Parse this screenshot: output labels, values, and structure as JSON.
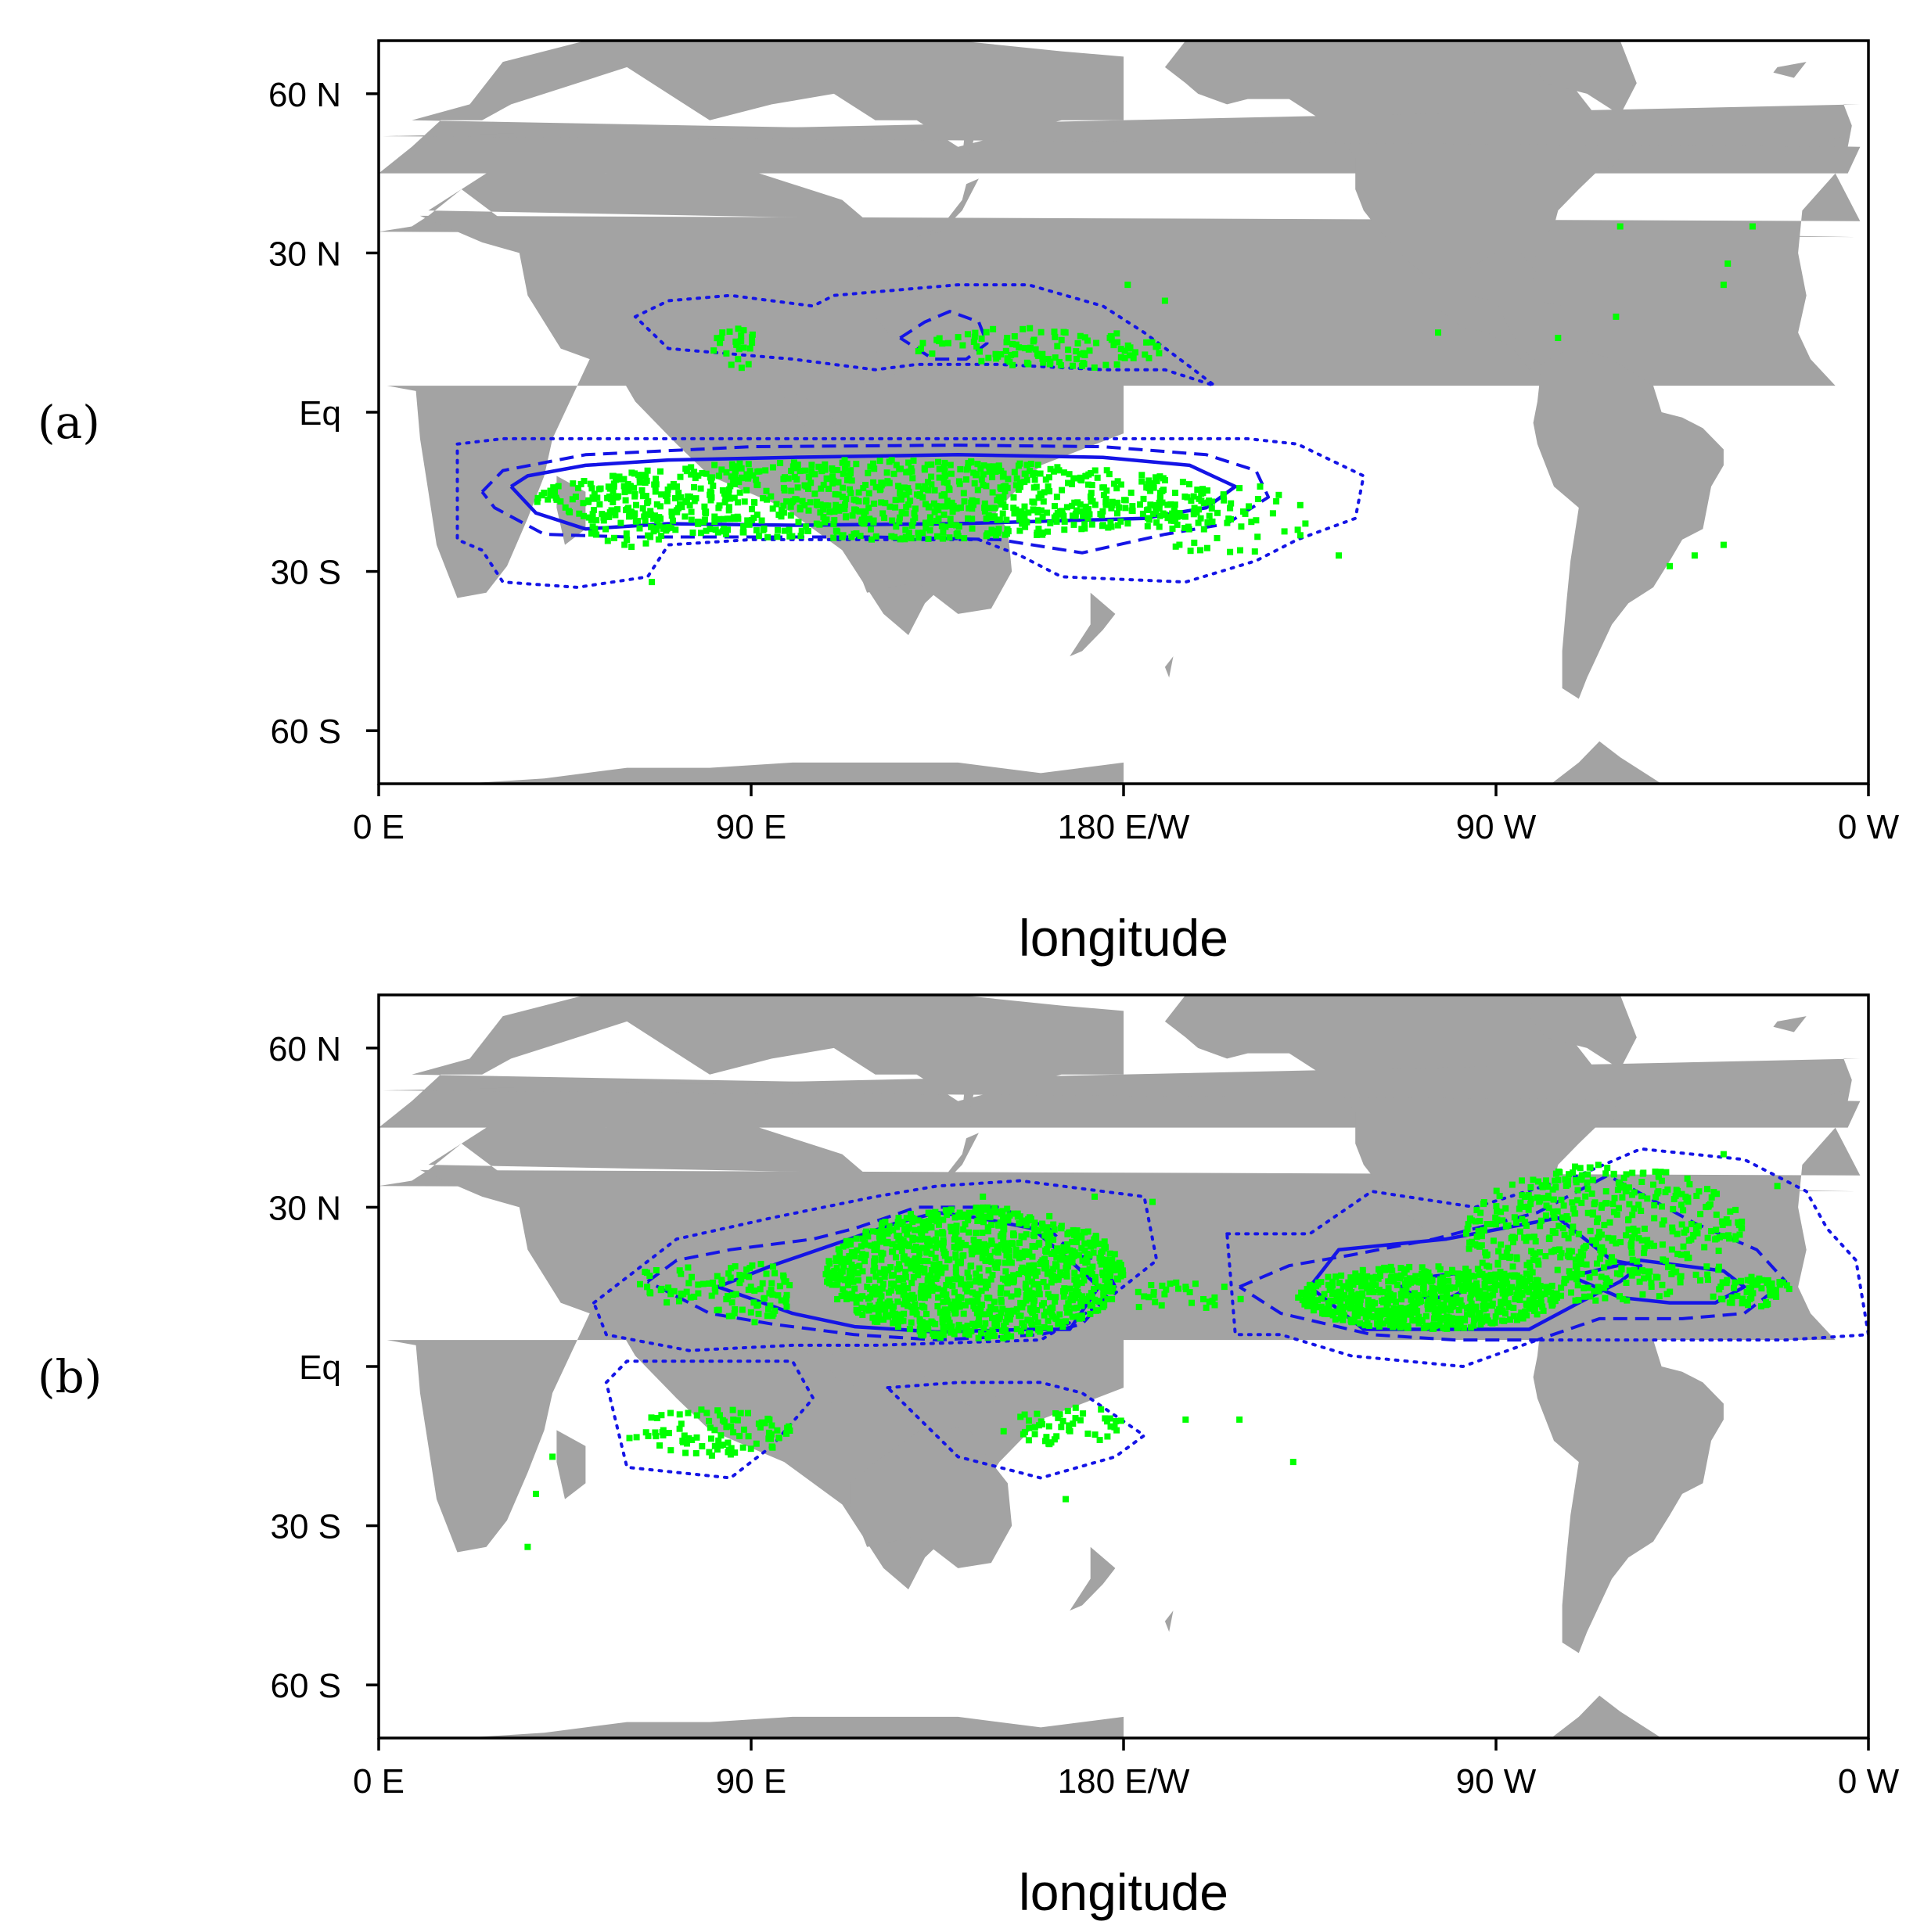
{
  "xlabel": "longitude",
  "panel_labels": [
    "(a)",
    "(b)"
  ],
  "x_tick_labels": [
    "0 E",
    "90 E",
    "180 E/W",
    "90 W",
    "0 W"
  ],
  "y_tick_labels": [
    "60 N",
    "30 N",
    "Eq",
    "30 S",
    "60 S"
  ],
  "colors": {
    "land": "#a3a3a3",
    "points": "#00ff00",
    "contours": "#1414e6"
  },
  "chart_data": [
    {
      "type": "scatter",
      "panel": "(a)",
      "xlabel": "longitude",
      "ylabel": "",
      "xlim": [
        0,
        360
      ],
      "ylim": [
        -70,
        70
      ],
      "x_ticks": [
        0,
        90,
        180,
        270,
        360
      ],
      "y_ticks": [
        60,
        30,
        0,
        -30,
        -60
      ],
      "grid": false,
      "background": "world map, land shaded grey",
      "point_clusters": [
        {
          "lon": [
            38,
            205
          ],
          "lat": [
            -24,
            -9
          ],
          "n": 900
        },
        {
          "lon": [
            50,
            70
          ],
          "lat": [
            -26,
            -18
          ],
          "n": 40
        },
        {
          "lon": [
            130,
            190
          ],
          "lat": [
            8,
            16
          ],
          "n": 110
        },
        {
          "lon": [
            80,
            92
          ],
          "lat": [
            8,
            16
          ],
          "n": 25
        },
        {
          "lon": [
            185,
            225
          ],
          "lat": [
            -27,
            -14
          ],
          "n": 60
        }
      ],
      "scattered_points": [
        [
          181,
          24
        ],
        [
          190,
          21
        ],
        [
          256,
          15
        ],
        [
          285,
          14
        ],
        [
          299,
          18
        ],
        [
          300,
          35
        ],
        [
          325,
          24
        ],
        [
          326,
          28
        ],
        [
          332,
          35
        ],
        [
          312,
          -29
        ],
        [
          318,
          -27
        ],
        [
          325,
          -25
        ],
        [
          66,
          -32
        ],
        [
          232,
          -27
        ],
        [
          213,
          -14
        ]
      ],
      "contours": [
        {
          "style": "solid",
          "lon": [
            32,
            36,
            50,
            70,
            100,
            140,
            175,
            196,
            207,
            200,
            185,
            140,
            100,
            70,
            50,
            38,
            32
          ],
          "lat": [
            -14,
            -12,
            -10,
            -9,
            -8.5,
            -8,
            -8.5,
            -10,
            -14,
            -18,
            -20,
            -21,
            -21.3,
            -21,
            -22,
            -19,
            -14
          ]
        },
        {
          "style": "dashed",
          "lon": [
            25,
            30,
            50,
            90,
            140,
            175,
            200,
            212,
            215,
            205,
            190,
            170,
            150,
            120,
            90,
            60,
            40,
            28,
            25
          ],
          "lat": [
            -15,
            -11,
            -8,
            -6.5,
            -6.2,
            -6.5,
            -8,
            -11,
            -16,
            -21,
            -23,
            -26.5,
            -24,
            -23.5,
            -23.5,
            -23.5,
            -23,
            -18,
            -15
          ]
        },
        {
          "style": "dashed",
          "lon": [
            126,
            132,
            138,
            145,
            147,
            142,
            134,
            126
          ],
          "lat": [
            14,
            17,
            19,
            17,
            13,
            10,
            10,
            14
          ]
        },
        {
          "style": "dotted",
          "lon": [
            19,
            30,
            55,
            90,
            140,
            180,
            210,
            222,
            238,
            236,
            222,
            212,
            195,
            165,
            155,
            145,
            120,
            90,
            70,
            65,
            48,
            30,
            25,
            19,
            19
          ],
          "lat": [
            -6,
            -5,
            -5,
            -5,
            -5,
            -5,
            -5,
            -6,
            -12,
            -20,
            -24,
            -28,
            -32,
            -31,
            -27,
            -24,
            -24,
            -24,
            -25,
            -31,
            -33,
            -32,
            -26,
            -24,
            -6
          ]
        },
        {
          "style": "dotted",
          "lon": [
            62,
            70,
            85,
            105,
            110,
            125,
            140,
            157,
            175,
            185,
            197,
            202,
            190,
            175,
            150,
            130,
            120,
            100,
            85,
            70,
            62
          ],
          "lat": [
            18,
            21,
            22,
            20,
            22,
            23,
            24,
            24,
            20,
            15,
            8,
            5,
            8,
            8,
            9,
            9,
            8,
            10,
            11,
            12,
            18
          ]
        }
      ]
    },
    {
      "type": "scatter",
      "panel": "(b)",
      "xlabel": "longitude",
      "ylabel": "",
      "xlim": [
        0,
        360
      ],
      "ylim": [
        -70,
        70
      ],
      "x_ticks": [
        0,
        90,
        180,
        270,
        360
      ],
      "y_ticks": [
        60,
        30,
        0,
        -30,
        -60
      ],
      "grid": false,
      "background": "world map, land shaded grey",
      "point_clusters": [
        {
          "lon": [
            108,
            180
          ],
          "lat": [
            5,
            30
          ],
          "n": 1100
        },
        {
          "lon": [
            80,
            100
          ],
          "lat": [
            8,
            20
          ],
          "n": 70
        },
        {
          "lon": [
            62,
            80
          ],
          "lat": [
            12,
            19
          ],
          "n": 30
        },
        {
          "lon": [
            180,
            210
          ],
          "lat": [
            10,
            16
          ],
          "n": 25
        },
        {
          "lon": [
            222,
            285
          ],
          "lat": [
            7,
            19
          ],
          "n": 650
        },
        {
          "lon": [
            262,
            330
          ],
          "lat": [
            12,
            38
          ],
          "n": 480
        },
        {
          "lon": [
            322,
            342
          ],
          "lat": [
            11,
            17
          ],
          "n": 60
        },
        {
          "lon": [
            60,
            100
          ],
          "lat": [
            -17,
            -8
          ],
          "n": 90
        },
        {
          "lon": [
            150,
            180
          ],
          "lat": [
            -15,
            -7
          ],
          "n": 50
        }
      ],
      "scattered_points": [
        [
          146,
          32
        ],
        [
          173,
          32
        ],
        [
          187,
          31
        ],
        [
          195,
          15
        ],
        [
          196,
          14
        ],
        [
          202,
          13
        ],
        [
          195,
          -10
        ],
        [
          208,
          -10
        ],
        [
          221,
          -18
        ],
        [
          38,
          -24
        ],
        [
          36,
          -34
        ],
        [
          42,
          -17
        ],
        [
          166,
          -25
        ],
        [
          325,
          40
        ],
        [
          338,
          34
        ]
      ],
      "contours": [
        {
          "style": "solid",
          "lon": [
            82,
            95,
            110,
            125,
            135,
            145,
            158,
            167,
            174,
            167,
            158,
            135,
            115,
            100,
            82
          ],
          "lat": [
            15,
            19,
            23,
            27,
            29,
            28,
            26,
            20,
            15,
            7,
            7,
            6.5,
            7.5,
            10,
            15
          ]
        },
        {
          "style": "dashed",
          "lon": [
            65,
            72,
            85,
            105,
            115,
            130,
            150,
            162,
            168,
            175,
            178,
            170,
            160,
            135,
            115,
            95,
            80,
            65
          ],
          "lat": [
            16,
            20,
            22,
            24,
            26,
            30,
            30,
            26,
            21,
            20,
            15,
            8,
            6,
            5,
            6,
            8,
            10,
            16
          ]
        },
        {
          "style": "solid",
          "lon": [
            225,
            232,
            258,
            285,
            298,
            305,
            300,
            290,
            278,
            255,
            238,
            225
          ],
          "lat": [
            15,
            22,
            24,
            28,
            20,
            19,
            16,
            12,
            7,
            7,
            7,
            15
          ]
        },
        {
          "style": "solid",
          "lon": [
            247,
            255,
            260,
            264,
            259,
            251,
            247
          ],
          "lat": [
            15,
            17,
            17.5,
            15,
            13,
            13,
            15
          ]
        },
        {
          "style": "solid",
          "lon": [
            288,
            305,
            325,
            330,
            323,
            312,
            300,
            288
          ],
          "lat": [
            17,
            20,
            18,
            15,
            12,
            12,
            13,
            17
          ]
        },
        {
          "style": "dashed",
          "lon": [
            208,
            220,
            235,
            255,
            280,
            297,
            318,
            333,
            340,
            330,
            315,
            295,
            280,
            260,
            240,
            218,
            208
          ],
          "lat": [
            15,
            19,
            21,
            24,
            29,
            36,
            27,
            22,
            16,
            10,
            9,
            9,
            5,
            5,
            6,
            10,
            15
          ]
        },
        {
          "style": "dotted",
          "lon": [
            205,
            225,
            240,
            265,
            290,
            305,
            330,
            345,
            350,
            357,
            360,
            340,
            310,
            280,
            262,
            235,
            218,
            207,
            205
          ],
          "lat": [
            25,
            25,
            33,
            30,
            36,
            41,
            39,
            33,
            26,
            20,
            6,
            5,
            5,
            5,
            0,
            2,
            6,
            6,
            25
          ]
        },
        {
          "style": "dotted",
          "lon": [
            52,
            72,
            95,
            120,
            135,
            155,
            185,
            188,
            175,
            160,
            120,
            100,
            75,
            55,
            52
          ],
          "lat": [
            12,
            24,
            28,
            32,
            34,
            35,
            32,
            20,
            12,
            5,
            4,
            4,
            3,
            6,
            12
          ]
        },
        {
          "style": "dotted",
          "lon": [
            55,
            60,
            100,
            105,
            95,
            85,
            60,
            55
          ],
          "lat": [
            -3,
            1,
            1,
            -6,
            -15,
            -21,
            -19,
            -3
          ]
        },
        {
          "style": "dotted",
          "lon": [
            123,
            140,
            160,
            170,
            185,
            178,
            160,
            140,
            123
          ],
          "lat": [
            -4,
            -3,
            -3,
            -5,
            -13,
            -17,
            -21,
            -17,
            -4
          ]
        }
      ]
    }
  ]
}
